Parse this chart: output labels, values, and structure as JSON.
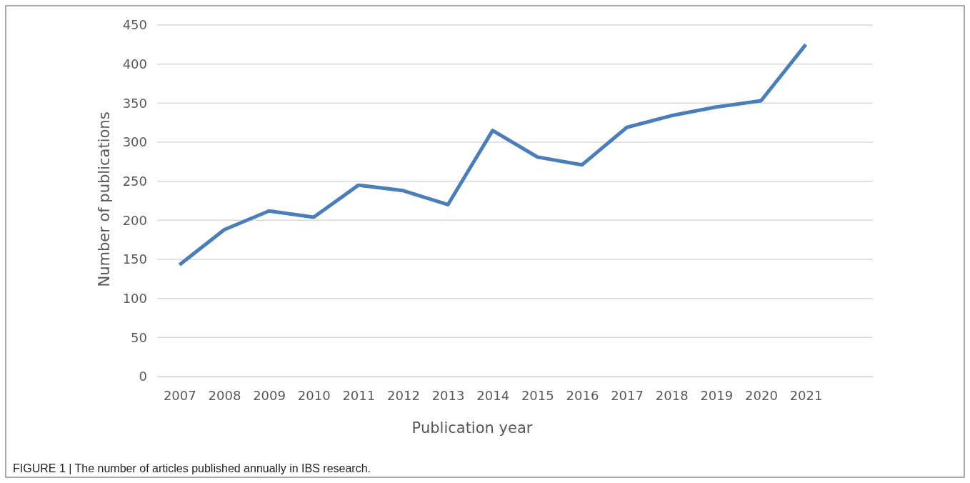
{
  "chart_data": {
    "type": "line",
    "xlabel": "Publication year",
    "ylabel": "Number of publications",
    "categories": [
      "2007",
      "2008",
      "2009",
      "2010",
      "2011",
      "2012",
      "2013",
      "2014",
      "2015",
      "2016",
      "2017",
      "2018",
      "2019",
      "2020",
      "2021"
    ],
    "series": [
      {
        "color": "#4a7ebb",
        "values": [
          143,
          188,
          212,
          204,
          245,
          238,
          220,
          315,
          281,
          271,
          319,
          334,
          345,
          353,
          425
        ]
      }
    ],
    "ylim": [
      0,
      450
    ],
    "yticks": [
      0,
      50,
      100,
      150,
      200,
      250,
      300,
      350,
      400,
      450
    ],
    "grid": "y",
    "marker": "none",
    "line_style": "solid",
    "annotations": [
      "FIGURE 1 | The number of articles published annually in IBS research."
    ]
  }
}
